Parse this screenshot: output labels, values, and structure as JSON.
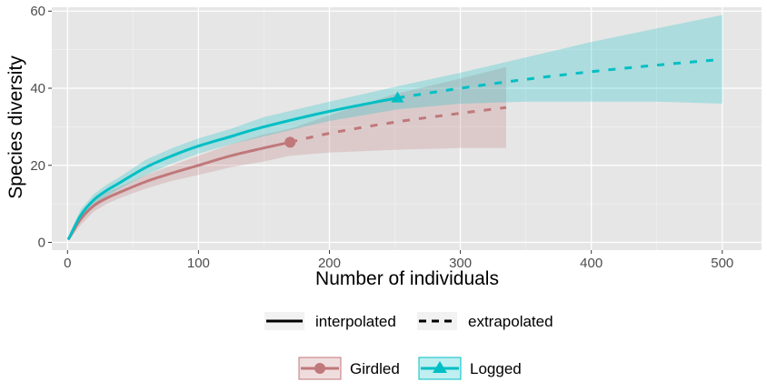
{
  "chart_data": {
    "type": "line",
    "title": "",
    "xlabel": "Number of individuals",
    "ylabel": "Species diversity",
    "xlim": [
      -12,
      530
    ],
    "ylim": [
      -2,
      61
    ],
    "x_ticks": [
      0,
      100,
      200,
      300,
      400,
      500
    ],
    "y_ticks": [
      0,
      20,
      40,
      60
    ],
    "grid": true,
    "panel_background": "#e6e6e6",
    "legend_placement": "bottom",
    "method_legend": [
      {
        "label": "interpolated",
        "dash": "solid"
      },
      {
        "label": "extrapolated",
        "dash": "dashed"
      }
    ],
    "series": [
      {
        "name": "Girdled",
        "color": "#c0787a",
        "marker": "circle",
        "observed": {
          "x": 170,
          "y": 26
        },
        "interpolated": {
          "x": [
            1,
            10,
            20,
            30,
            40,
            60,
            80,
            100,
            125,
            150,
            170
          ],
          "y": [
            1,
            6,
            9.5,
            11.5,
            13,
            15.8,
            18,
            20,
            22.5,
            24.5,
            26
          ]
        },
        "extrapolated": {
          "x": [
            170,
            200,
            250,
            300,
            335
          ],
          "y": [
            26,
            28.3,
            31.2,
            33.5,
            35
          ]
        },
        "ci_lower": [
          0.5,
          4.5,
          8,
          10,
          11.5,
          14,
          16,
          17.5,
          19.5,
          21,
          22.5,
          23.3,
          24,
          24.5,
          24.5
        ],
        "ci_upper": [
          1.5,
          7.5,
          11,
          13,
          14.5,
          17.5,
          20,
          22.5,
          25.5,
          28,
          29.5,
          33,
          38.5,
          42.5,
          45.5
        ],
        "ci_x": [
          1,
          10,
          20,
          30,
          40,
          60,
          80,
          100,
          125,
          150,
          170,
          200,
          250,
          300,
          335
        ]
      },
      {
        "name": "Logged",
        "color": "#00bfc4",
        "marker": "triangle",
        "observed": {
          "x": 252,
          "y": 37.5
        },
        "interpolated": {
          "x": [
            1,
            10,
            20,
            30,
            40,
            60,
            80,
            100,
            125,
            150,
            200,
            252
          ],
          "y": [
            1,
            7,
            11,
            13.5,
            15.5,
            19.5,
            22.5,
            25,
            27.5,
            30,
            34,
            37.5
          ]
        },
        "extrapolated": {
          "x": [
            252,
            300,
            350,
            400,
            450,
            500
          ],
          "y": [
            37.5,
            40,
            42.3,
            44.3,
            46,
            47.5
          ]
        },
        "ci_lower": [
          0.5,
          5.5,
          9.5,
          12,
          14,
          17.5,
          20.5,
          23,
          25.5,
          27.5,
          31.5,
          34.5,
          36,
          36.5,
          36.5,
          36.5,
          36
        ],
        "ci_upper": [
          1.5,
          8.5,
          12.5,
          15,
          17,
          21.5,
          24.5,
          27,
          29.5,
          32.5,
          36.5,
          40.5,
          44,
          48,
          52,
          55.5,
          59
        ],
        "ci_x": [
          1,
          10,
          20,
          30,
          40,
          60,
          80,
          100,
          125,
          150,
          200,
          252,
          300,
          350,
          400,
          450,
          500
        ]
      }
    ]
  }
}
